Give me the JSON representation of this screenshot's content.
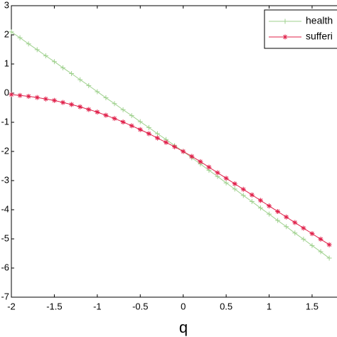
{
  "chart_data": {
    "type": "line",
    "x_label": "q",
    "x": [
      -2.0,
      -1.9,
      -1.8,
      -1.7,
      -1.6,
      -1.5,
      -1.4,
      -1.3,
      -1.2,
      -1.1,
      -1.0,
      -0.9,
      -0.8,
      -0.7,
      -0.6,
      -0.5,
      -0.4,
      -0.3,
      -0.2,
      -0.1,
      0,
      0.1,
      0.2,
      0.3,
      0.4,
      0.5,
      0.6,
      0.7,
      0.8,
      0.9,
      1.0,
      1.1,
      1.2,
      1.3,
      1.4,
      1.5,
      1.6,
      1.7
    ],
    "series": [
      {
        "name": "health",
        "color": "#9fd18e",
        "marker": "plus",
        "values": [
          2.1,
          1.9,
          1.69,
          1.49,
          1.28,
          1.08,
          0.87,
          0.67,
          0.46,
          0.26,
          0.05,
          -0.16,
          -0.36,
          -0.57,
          -0.77,
          -0.98,
          -1.18,
          -1.39,
          -1.59,
          -1.8,
          -2.0,
          -2.22,
          -2.43,
          -2.65,
          -2.86,
          -3.08,
          -3.29,
          -3.51,
          -3.72,
          -3.94,
          -4.15,
          -4.37,
          -4.58,
          -4.8,
          -5.01,
          -5.23,
          -5.44,
          -5.66
        ]
      },
      {
        "name": "sufferi",
        "color": "#e0204a",
        "marker": "star",
        "values": [
          -0.05,
          -0.08,
          -0.11,
          -0.15,
          -0.2,
          -0.25,
          -0.32,
          -0.39,
          -0.47,
          -0.56,
          -0.65,
          -0.76,
          -0.87,
          -0.99,
          -1.12,
          -1.25,
          -1.39,
          -1.54,
          -1.69,
          -1.84,
          -2.0,
          -2.17,
          -2.35,
          -2.54,
          -2.73,
          -2.92,
          -3.11,
          -3.3,
          -3.49,
          -3.68,
          -3.87,
          -4.06,
          -4.25,
          -4.44,
          -4.63,
          -4.82,
          -5.01,
          -5.2
        ]
      }
    ],
    "xlim": [
      -2,
      1.79
    ],
    "xticks": [
      -2,
      -1.5,
      -1,
      -0.5,
      0,
      0.5,
      1,
      1.5
    ],
    "ylim": [
      -7,
      3
    ],
    "yticks": [
      -7,
      -6,
      -5,
      -4,
      -3,
      -2,
      -1,
      0,
      1,
      2,
      3
    ],
    "grid": false,
    "legend": "top-right"
  }
}
